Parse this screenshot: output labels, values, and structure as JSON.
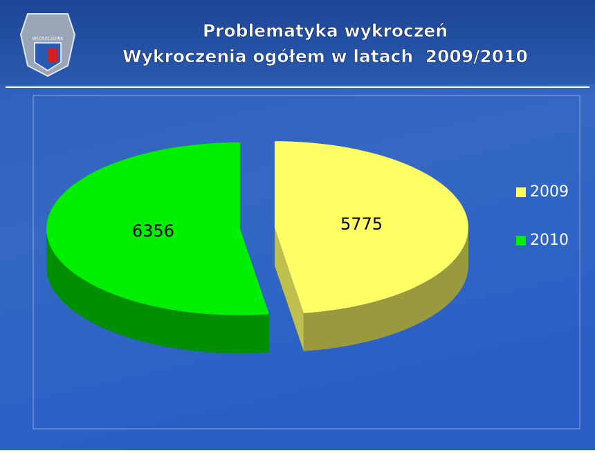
{
  "logo_text": "WŁOSZCZOWA",
  "chart_data": {
    "type": "pie",
    "title": "Problematyka wykroczeń",
    "subtitle": "Wykroczenia ogółem w latach  2009/2010",
    "categories": [
      "2009",
      "2010"
    ],
    "values": [
      5775,
      6356
    ],
    "colors": [
      "#ffff66",
      "#00ee00"
    ],
    "legend": "right",
    "exploded": true,
    "three_d": true
  }
}
